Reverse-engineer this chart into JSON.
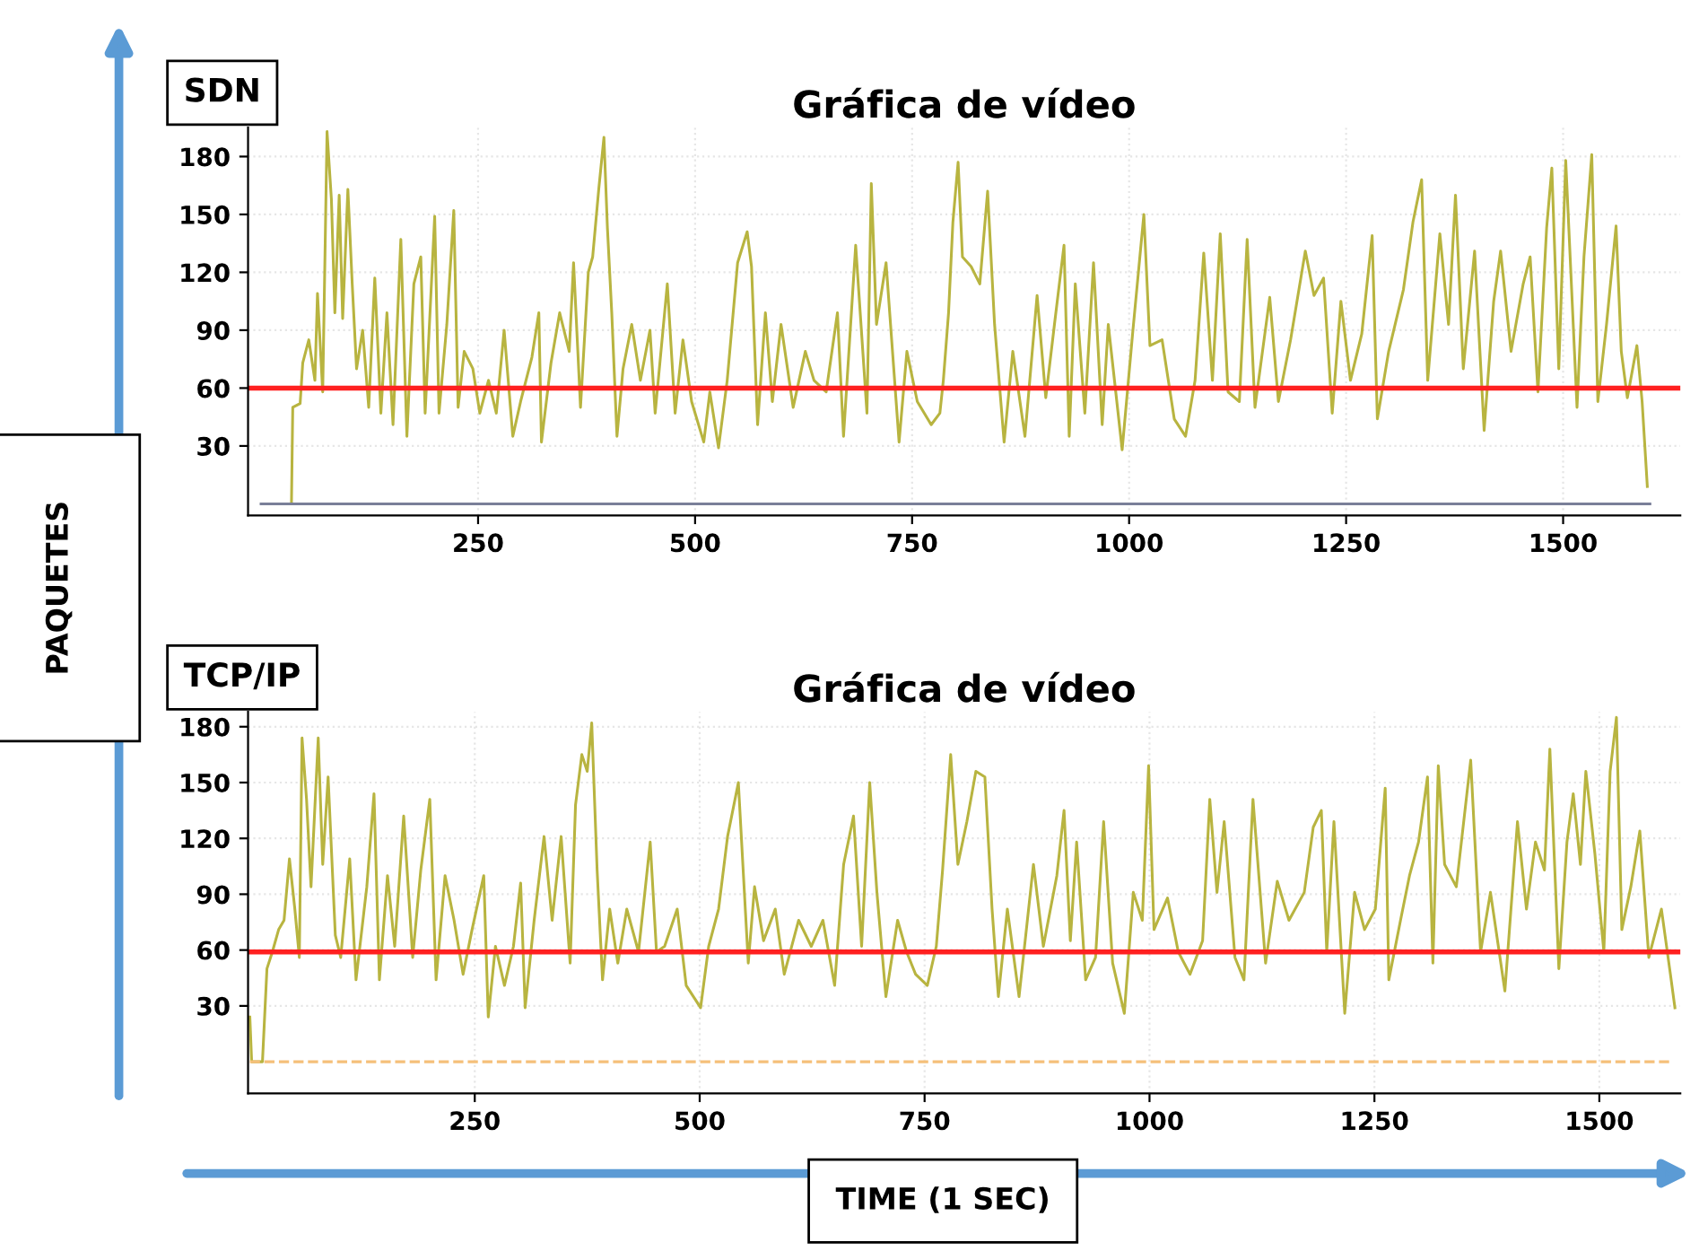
{
  "chart_data": [
    {
      "type": "line",
      "title": "Gráfica de vídeo",
      "ylabel": "PAQUETES",
      "annotations": [
        "SDN"
      ],
      "xlim": [
        -15,
        1635
      ],
      "ylim": [
        -6,
        195
      ],
      "xticks": [
        250,
        500,
        750,
        1000,
        1250,
        1500
      ],
      "yticks": [
        30,
        60,
        90,
        120,
        150,
        180
      ],
      "grid": true,
      "legend": false,
      "ref_lines": [
        {
          "axis": "y",
          "value": 60,
          "color": "#ff2020"
        }
      ],
      "series": [
        {
          "color": "#b8b440",
          "x": [
            35,
            36.5,
            45,
            48,
            55,
            62,
            65,
            71,
            76,
            81,
            85,
            90,
            94,
            100,
            105,
            110,
            117,
            124,
            131,
            138,
            145,
            152,
            161,
            168,
            176,
            184,
            189,
            200,
            205,
            214,
            222,
            227,
            234,
            244,
            252,
            262,
            271,
            280,
            290,
            299,
            312,
            320,
            323,
            334,
            344,
            355,
            360,
            368,
            377,
            382,
            389,
            395,
            399,
            404,
            410,
            417,
            427,
            437,
            448,
            454,
            468,
            477,
            486,
            496,
            510,
            517,
            527,
            537,
            549,
            560,
            565,
            572,
            581,
            589,
            599,
            613,
            627,
            637,
            651,
            664,
            671,
            685,
            698,
            703,
            709,
            720,
            735,
            744,
            756,
            772,
            782,
            786,
            792,
            797,
            803,
            808,
            818,
            828,
            837,
            845,
            856,
            866,
            880,
            894,
            904,
            914,
            925,
            931,
            938,
            949,
            959,
            969,
            976,
            992,
            1004,
            1017,
            1024,
            1038,
            1052,
            1065,
            1076,
            1086,
            1096,
            1105,
            1114,
            1127,
            1136,
            1145,
            1162,
            1172,
            1186,
            1203,
            1213,
            1224,
            1234,
            1244,
            1255,
            1268,
            1280,
            1286,
            1299,
            1316,
            1327,
            1337,
            1344,
            1358,
            1368,
            1376,
            1385,
            1398,
            1409,
            1420,
            1428,
            1440,
            1454,
            1462,
            1471,
            1481,
            1487,
            1495,
            1503,
            1516,
            1524,
            1533,
            1540,
            1550,
            1561,
            1567,
            1574,
            1585,
            1591,
            1597
          ],
          "values": [
            0,
            50,
            52,
            73,
            85,
            64,
            109,
            58,
            193,
            158,
            99,
            160,
            96,
            163,
            114,
            70,
            90,
            50,
            117,
            47,
            99,
            41,
            137,
            35,
            114,
            128,
            47,
            149,
            47,
            93,
            152,
            50,
            79,
            70,
            47,
            64,
            47,
            90,
            35,
            53,
            76,
            99,
            32,
            73,
            99,
            79,
            125,
            50,
            120,
            128,
            163,
            190,
            143,
            99,
            35,
            70,
            93,
            64,
            90,
            47,
            114,
            47,
            85,
            53,
            32,
            58,
            29,
            64,
            125,
            141,
            123,
            41,
            99,
            53,
            93,
            50,
            79,
            64,
            58,
            99,
            35,
            134,
            47,
            166,
            93,
            125,
            32,
            79,
            53,
            41,
            47,
            64,
            99,
            146,
            177,
            128,
            123,
            114,
            162,
            93,
            32,
            79,
            35,
            108,
            55,
            93,
            134,
            35,
            114,
            47,
            125,
            41,
            93,
            28,
            88,
            150,
            82,
            85,
            44,
            35,
            64,
            130,
            64,
            140,
            58,
            53,
            137,
            50,
            107,
            53,
            85,
            131,
            108,
            117,
            47,
            105,
            64,
            88,
            139,
            44,
            79,
            111,
            146,
            168,
            64,
            140,
            93,
            160,
            70,
            131,
            38,
            105,
            131,
            79,
            114,
            128,
            58,
            143,
            174,
            70,
            178,
            50,
            128,
            181,
            53,
            93,
            144,
            79,
            55,
            82,
            53,
            9
          ]
        },
        {
          "color": "#7a7f99",
          "x": [
            0,
            1600
          ],
          "values": [
            0,
            0
          ]
        }
      ]
    },
    {
      "type": "line",
      "title": "Gráfica de vídeo",
      "xlabel": "TIME (1 SEC)",
      "annotations": [
        "TCP/IP"
      ],
      "xlim": [
        -2,
        1590
      ],
      "ylim": [
        -17,
        188
      ],
      "xticks": [
        250,
        500,
        750,
        1000,
        1250,
        1500
      ],
      "yticks": [
        30,
        60,
        90,
        120,
        150,
        180
      ],
      "grid": true,
      "legend": false,
      "ref_lines": [
        {
          "axis": "y",
          "value": 59,
          "color": "#ff2020"
        }
      ],
      "series": [
        {
          "color": "#b8b440",
          "x": [
            0,
            2,
            14,
            19,
            25,
            32,
            38,
            44,
            50,
            55,
            58,
            63,
            68,
            76,
            81,
            87,
            95,
            101,
            111,
            118,
            130,
            138,
            144,
            153,
            161,
            171,
            181,
            190,
            200,
            207,
            217,
            227,
            237,
            247,
            260,
            265,
            273,
            283,
            293,
            301,
            306,
            316,
            327,
            336,
            346,
            356,
            362,
            369,
            375,
            380,
            386,
            392,
            400,
            409,
            419,
            432,
            445,
            452,
            461,
            475,
            485,
            501,
            510,
            521,
            531,
            543,
            554,
            561,
            571,
            584,
            594,
            610,
            624,
            637,
            650,
            660,
            671,
            680,
            689,
            697,
            707,
            720,
            730,
            740,
            753,
            763,
            770,
            779,
            787,
            797,
            807,
            817,
            825,
            832,
            842,
            855,
            871,
            882,
            897,
            905,
            912,
            919,
            929,
            940,
            949,
            959,
            972,
            982,
            992,
            999,
            1005,
            1020,
            1032,
            1045,
            1059,
            1067,
            1075,
            1083,
            1095,
            1105,
            1115,
            1129,
            1142,
            1155,
            1172,
            1182,
            1191,
            1197,
            1205,
            1217,
            1228,
            1239,
            1251,
            1262,
            1266,
            1279,
            1289,
            1299,
            1309,
            1315,
            1321,
            1328,
            1341,
            1357,
            1368,
            1379,
            1395,
            1409,
            1419,
            1429,
            1439,
            1445,
            1455,
            1464,
            1471,
            1479,
            1485,
            1495,
            1505,
            1512,
            1519,
            1525,
            1535,
            1545,
            1555,
            1569,
            1579,
            1584
          ],
          "values": [
            24,
            0,
            0,
            50,
            59,
            71,
            76,
            109,
            82,
            56,
            174,
            141,
            94,
            174,
            106,
            153,
            68,
            56,
            109,
            44,
            94,
            144,
            44,
            100,
            62,
            132,
            56,
            103,
            141,
            44,
            100,
            76,
            47,
            71,
            100,
            24,
            62,
            41,
            62,
            96,
            29,
            76,
            121,
            76,
            121,
            53,
            138,
            165,
            156,
            182,
            103,
            44,
            82,
            53,
            82,
            59,
            118,
            59,
            62,
            82,
            41,
            29,
            62,
            82,
            121,
            150,
            53,
            94,
            65,
            82,
            47,
            76,
            62,
            76,
            41,
            106,
            132,
            62,
            150,
            91,
            35,
            76,
            59,
            47,
            41,
            62,
            103,
            165,
            106,
            129,
            156,
            153,
            82,
            35,
            82,
            35,
            106,
            62,
            100,
            135,
            65,
            118,
            44,
            56,
            129,
            53,
            26,
            91,
            76,
            159,
            71,
            88,
            59,
            47,
            65,
            141,
            91,
            129,
            56,
            44,
            141,
            53,
            97,
            76,
            91,
            126,
            135,
            59,
            129,
            26,
            91,
            71,
            82,
            147,
            44,
            76,
            100,
            118,
            153,
            53,
            159,
            106,
            94,
            162,
            59,
            91,
            38,
            129,
            82,
            118,
            103,
            168,
            50,
            118,
            144,
            106,
            156,
            112,
            59,
            156,
            185,
            71,
            94,
            124,
            56,
            82,
            47,
            29
          ]
        },
        {
          "color": "#f5c07a",
          "line_style": "dashed",
          "x": [
            0,
            1580
          ],
          "values": [
            0,
            0
          ]
        }
      ]
    }
  ]
}
